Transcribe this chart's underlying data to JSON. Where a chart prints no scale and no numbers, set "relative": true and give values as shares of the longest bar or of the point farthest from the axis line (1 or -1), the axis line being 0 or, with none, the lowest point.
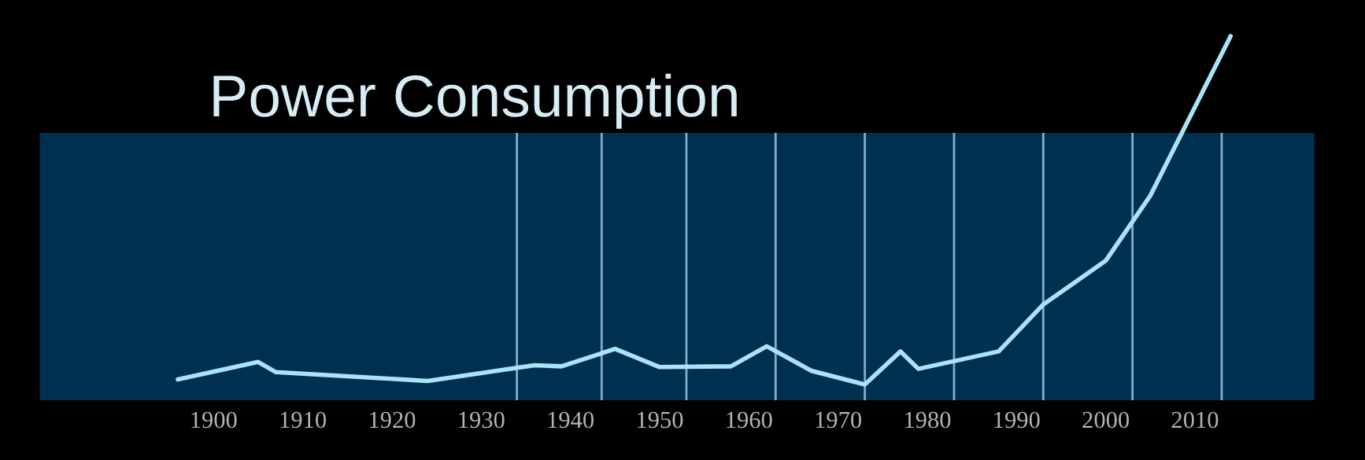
{
  "chart_data": {
    "type": "line",
    "title": "Power Consumption",
    "relative": true,
    "x": [
      1896,
      1905,
      1907,
      1924,
      1934,
      1936,
      1939,
      1945,
      1950,
      1958,
      1962,
      1967,
      1973,
      1977,
      1979,
      1988,
      1993,
      2000,
      2005,
      2014
    ],
    "series": [
      {
        "color": "#a8e4f8",
        "values": [
          0.057,
          0.105,
          0.077,
          0.053,
          0.089,
          0.096,
          0.093,
          0.141,
          0.091,
          0.093,
          0.148,
          0.081,
          0.043,
          0.134,
          0.086,
          0.134,
          0.263,
          0.383,
          0.562,
          1.0
        ]
      }
    ],
    "xlim": [
      1880.5,
      2023.4
    ],
    "xticks": [
      1900,
      1910,
      1920,
      1930,
      1940,
      1950,
      1960,
      1970,
      1980,
      1990,
      2000,
      2010
    ],
    "ref_lines": [
      {
        "axis": "x",
        "value": 1934,
        "color": "#7fb0cf"
      },
      {
        "axis": "x",
        "value": 1943.5,
        "color": "#7fb0cf"
      },
      {
        "axis": "x",
        "value": 1953,
        "color": "#7fb0cf"
      },
      {
        "axis": "x",
        "value": 1963,
        "color": "#7fb0cf"
      },
      {
        "axis": "x",
        "value": 1973,
        "color": "#7fb0cf"
      },
      {
        "axis": "x",
        "value": 1983,
        "color": "#7fb0cf"
      },
      {
        "axis": "x",
        "value": 1993,
        "color": "#7fb0cf"
      },
      {
        "axis": "x",
        "value": 2003,
        "color": "#7fb0cf"
      },
      {
        "axis": "x",
        "value": 2013,
        "color": "#7fb0cf"
      }
    ],
    "bands": [
      {
        "axis": "x",
        "from": 1880.5,
        "to": 2023.4,
        "color": "#00304f"
      }
    ],
    "grid": false,
    "legend": false,
    "marker": "none",
    "line_style": "solid"
  }
}
